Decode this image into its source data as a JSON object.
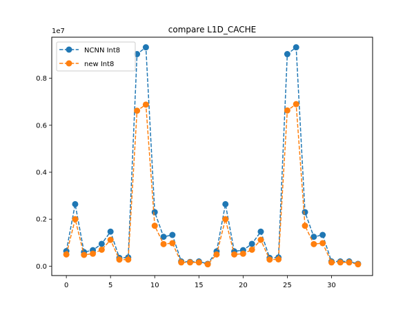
{
  "chart_data": {
    "type": "line",
    "title": "compare L1D_CACHE",
    "xlabel": "",
    "ylabel": "",
    "y_scale_label": "1e7",
    "xlim": [
      -1.65,
      34.65
    ],
    "ylim": [
      -0.04,
      0.975
    ],
    "xticks": [
      0,
      5,
      10,
      15,
      20,
      25,
      30
    ],
    "xtick_labels": [
      "0",
      "5",
      "10",
      "15",
      "20",
      "25",
      "30"
    ],
    "yticks": [
      0.0,
      0.2,
      0.4,
      0.6,
      0.8
    ],
    "ytick_labels": [
      "0.0",
      "0.2",
      "0.4",
      "0.6",
      "0.8"
    ],
    "legend_position": "top-left",
    "x": [
      0,
      1,
      2,
      3,
      4,
      5,
      6,
      7,
      8,
      9,
      10,
      11,
      12,
      13,
      14,
      15,
      16,
      17,
      18,
      19,
      20,
      21,
      22,
      23,
      24,
      25,
      26,
      27,
      28,
      29,
      30,
      31,
      32,
      33
    ],
    "series": [
      {
        "name": "NCNN Int8",
        "color": "#1f77b4",
        "values": [
          0.064,
          0.264,
          0.06,
          0.068,
          0.095,
          0.147,
          0.035,
          0.037,
          0.903,
          0.932,
          0.23,
          0.125,
          0.133,
          0.02,
          0.018,
          0.02,
          0.01,
          0.063,
          0.264,
          0.063,
          0.068,
          0.095,
          0.147,
          0.035,
          0.037,
          0.903,
          0.932,
          0.23,
          0.125,
          0.133,
          0.02,
          0.02,
          0.02,
          0.01
        ]
      },
      {
        "name": "new Int8",
        "color": "#ff7f0e",
        "values": [
          0.05,
          0.2,
          0.048,
          0.053,
          0.07,
          0.112,
          0.028,
          0.028,
          0.662,
          0.688,
          0.172,
          0.094,
          0.098,
          0.016,
          0.016,
          0.016,
          0.008,
          0.05,
          0.2,
          0.05,
          0.053,
          0.07,
          0.112,
          0.028,
          0.029,
          0.663,
          0.69,
          0.172,
          0.094,
          0.098,
          0.016,
          0.016,
          0.016,
          0.008
        ]
      }
    ]
  }
}
